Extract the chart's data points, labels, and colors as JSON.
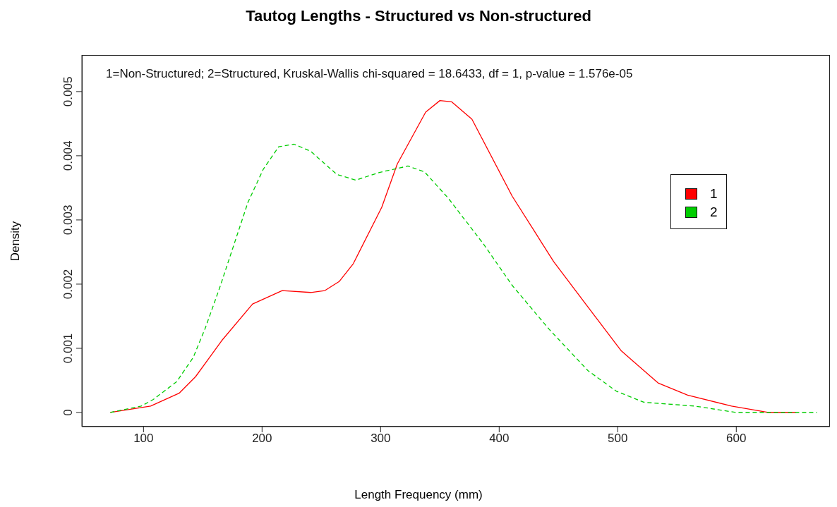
{
  "chart_data": {
    "type": "line",
    "title": "Tautog Lengths - Structured vs Non-structured",
    "xlabel": "Length Frequency (mm)",
    "ylabel": "Density",
    "annotations": [
      "1=Non-Structured; 2=Structured, Kruskal-Wallis chi-squared = 18.6433, df = 1, p-value = 1.576e-05"
    ],
    "xlim": [
      48,
      679
    ],
    "xticks": [
      100,
      200,
      300,
      400,
      500,
      600
    ],
    "ylim": [
      -0.00022,
      0.00557
    ],
    "yticks": [
      0,
      0.001,
      0.002,
      0.003,
      0.004,
      0.005
    ],
    "grid": false,
    "legend": "right",
    "marker": "none",
    "series": [
      {
        "name": "1",
        "color": "#ff0000",
        "line_style": "solid",
        "x": [
          72,
          106,
          130,
          144,
          166,
          192,
          217,
          241,
          253,
          265,
          277,
          301,
          314,
          338,
          350,
          360,
          377,
          411,
          446,
          475,
          503,
          534,
          559,
          596,
          627,
          650
        ],
        "values": [
          0,
          0.0001,
          0.0003,
          0.00056,
          0.00112,
          0.00169,
          0.0019,
          0.00187,
          0.0019,
          0.00204,
          0.00232,
          0.0032,
          0.00387,
          0.00468,
          0.00486,
          0.00484,
          0.00457,
          0.00337,
          0.00235,
          0.00164,
          0.00096,
          0.00046,
          0.00027,
          0.0001,
          0,
          0
        ]
      },
      {
        "name": "2",
        "color": "#00cd00",
        "line_style": "dashed",
        "x": [
          72,
          98,
          108,
          128,
          142,
          152,
          164,
          176,
          188,
          201,
          214,
          227,
          241,
          263,
          279,
          299,
          323,
          337,
          357,
          387,
          411,
          442,
          475,
          499,
          522,
          565,
          600,
          668
        ],
        "values": [
          0,
          0.0001,
          0.0002,
          0.00048,
          0.00086,
          0.00131,
          0.00193,
          0.0026,
          0.00327,
          0.00379,
          0.00414,
          0.00418,
          0.00407,
          0.00371,
          0.00362,
          0.00374,
          0.00384,
          0.00375,
          0.00334,
          0.00262,
          0.00198,
          0.0013,
          0.00065,
          0.00033,
          0.00016,
          0.0001,
          0,
          0
        ]
      }
    ]
  }
}
